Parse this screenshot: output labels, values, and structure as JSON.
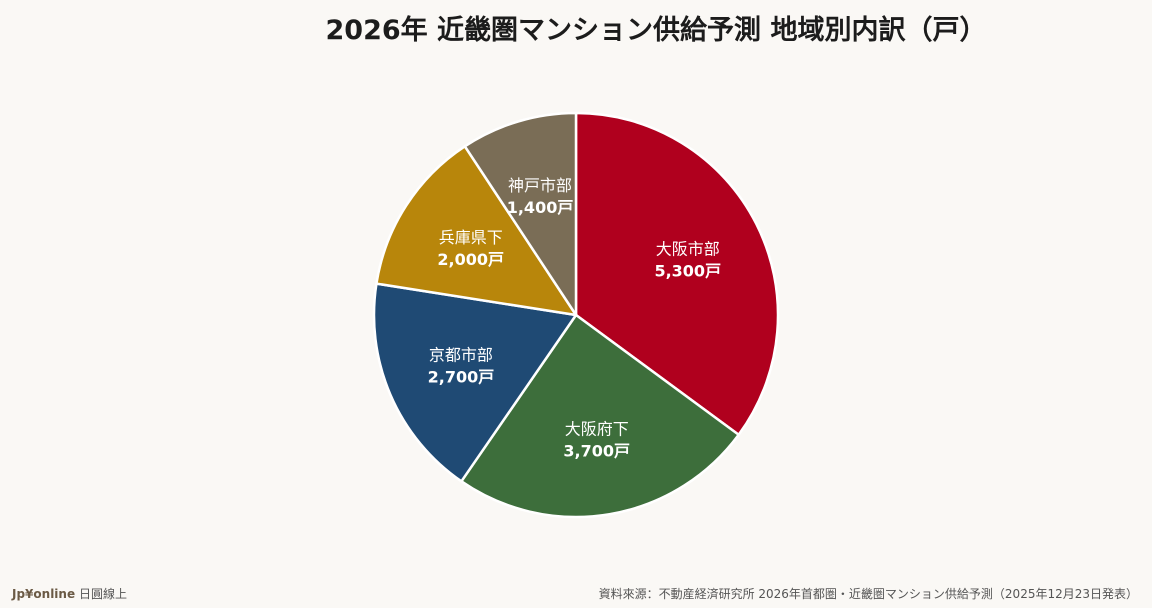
{
  "title": "2026年 近畿圏マンション供給予測 地域別内訳（戸）",
  "footer": {
    "brand": "Jp¥online",
    "brand_sub": "日圓線上",
    "source": "資料來源：不動産経済研究所 2026年首都圏・近畿圏マンション供給予測（2025年12月23日発表）"
  },
  "chart_data": {
    "type": "pie",
    "title": "2026年 近畿圏マンション供給予測 地域別内訳（戸）",
    "unit": "戸",
    "start": "12 o'clock",
    "direction": "clockwise",
    "slices": [
      {
        "label": "大阪市部",
        "value": 5300,
        "display": "5,300戸",
        "color": "#b0001e"
      },
      {
        "label": "大阪府下",
        "value": 3700,
        "display": "3,700戸",
        "color": "#3d6e3b"
      },
      {
        "label": "京都市部",
        "value": 2700,
        "display": "2,700戸",
        "color": "#1f4a74"
      },
      {
        "label": "兵庫県下",
        "value": 2000,
        "display": "2,000戸",
        "color": "#b8860b"
      },
      {
        "label": "神戸市部",
        "value": 1400,
        "display": "1,400戸",
        "color": "#7a6d56"
      }
    ]
  }
}
